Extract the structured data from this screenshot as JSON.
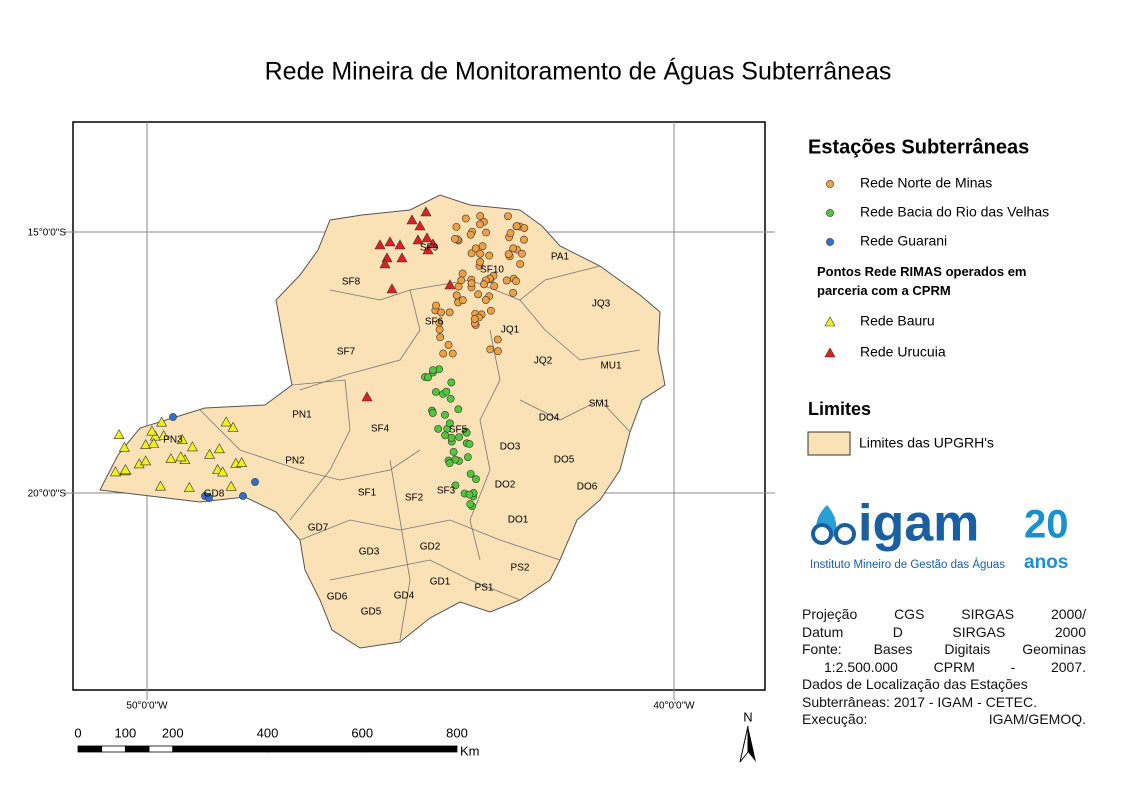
{
  "title": "Rede Mineira de Monitoramento de Águas Subterrâneas",
  "map": {
    "grid_labels": {
      "lat_north": "15°0'0\"S",
      "lat_south": "20°0'0\"S",
      "lon_west": "50°0'0\"W",
      "lon_east": "40°0'0\"W"
    },
    "regions": [
      "SF8",
      "SF9",
      "SF10",
      "PA1",
      "JQ3",
      "SF6",
      "JQ1",
      "SF7",
      "JQ2",
      "MU1",
      "DO4",
      "SM1",
      "PN1",
      "SF4",
      "SF5",
      "PN3",
      "DO3",
      "PN2",
      "DO5",
      "SF1",
      "SF2",
      "SF3",
      "DO2",
      "DO6",
      "GD8",
      "DO1",
      "GD7",
      "GD3",
      "GD2",
      "PS2",
      "GD1",
      "PS1",
      "GD6",
      "GD4",
      "GD5"
    ]
  },
  "legend": {
    "title": "Estações Subterrâneas",
    "items": [
      {
        "label": "Rede Norte de Minas",
        "color": "#f0a040"
      },
      {
        "label": "Rede Bacia do Rio das Velhas",
        "color": "#50c83c"
      },
      {
        "label": "Rede Guarani",
        "color": "#3070c8"
      }
    ],
    "subtitle": "Pontos Rede RIMAS operados em parceria com a CPRM",
    "triangles": [
      {
        "label": "Rede Bauru",
        "color": "#f0f020"
      },
      {
        "label": "Rede Urucuia",
        "color": "#e02020"
      }
    ],
    "limits_title": "Limites",
    "limits_item": {
      "label": "Limites das UPGRH's",
      "color": "#fbe1b6"
    }
  },
  "logo": {
    "name": "igam",
    "years": "20",
    "anos": "anos",
    "subtitle": "Instituto Mineiro de Gestão das Águas"
  },
  "notes": [
    "Projeção CGS SIRGAS 2000/",
    "Datum D SIRGAS 2000",
    "Fonte: Bases Digitais Geominas",
    "1:2.500.000 CPRM - 2007.",
    "Dados de Localização das Estações",
    "Subterrâneas: 2017 - IGAM - CETEC.",
    "Execução: IGAM/GEMOQ."
  ],
  "scale": {
    "ticks": [
      0,
      100,
      200,
      400,
      600,
      800
    ],
    "unit": "Km"
  },
  "north": "N"
}
